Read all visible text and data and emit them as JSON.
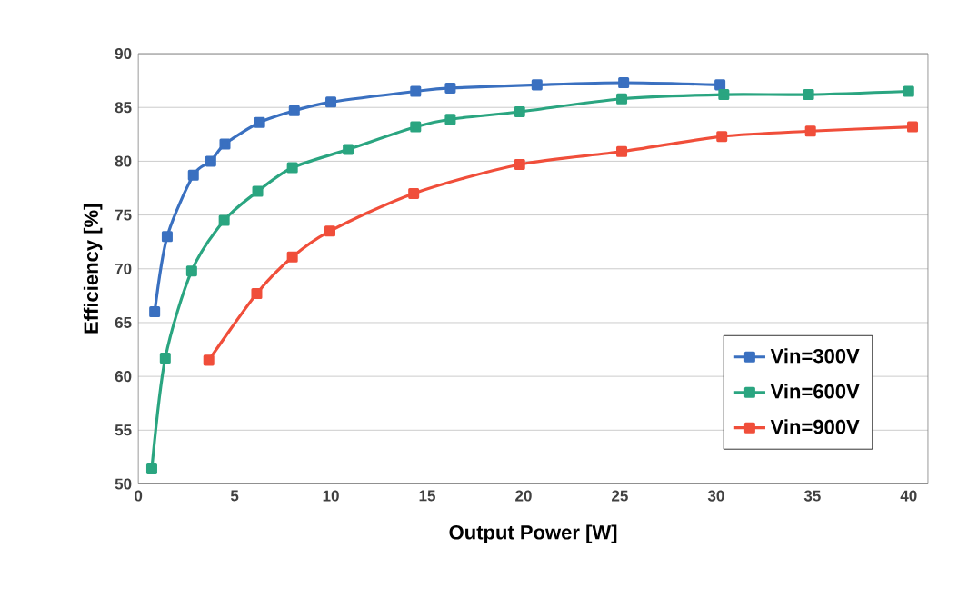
{
  "chart_data": {
    "type": "line",
    "xlabel": "Output Power [W]",
    "ylabel": "Efficiency [%]",
    "xlim": [
      0,
      41
    ],
    "ylim": [
      50,
      90
    ],
    "xticks": [
      0,
      5,
      10,
      15,
      20,
      25,
      30,
      35,
      40
    ],
    "yticks": [
      50,
      55,
      60,
      65,
      70,
      75,
      80,
      85,
      90
    ],
    "grid": "y",
    "legend": "bottom right",
    "marker": "square",
    "line_style": "solid",
    "series": [
      {
        "name": "Vin=300V",
        "color": "#3a70c0",
        "x": [
          0.85,
          1.5,
          2.86,
          3.76,
          4.5,
          6.3,
          8.1,
          10.0,
          14.4,
          16.2,
          20.7,
          25.2,
          30.2
        ],
        "values": [
          66.0,
          73.0,
          78.7,
          80.0,
          81.6,
          83.6,
          84.7,
          85.5,
          86.5,
          86.8,
          87.1,
          87.3,
          87.1
        ]
      },
      {
        "name": "Vin=600V",
        "color": "#2aa580",
        "x": [
          0.7,
          1.4,
          2.77,
          4.46,
          6.2,
          8.0,
          10.9,
          14.4,
          16.2,
          19.8,
          25.1,
          30.4,
          34.8,
          40.0
        ],
        "values": [
          51.4,
          61.7,
          69.8,
          74.5,
          77.2,
          79.4,
          81.1,
          83.2,
          83.9,
          84.6,
          85.8,
          86.2,
          86.2,
          86.5
        ]
      },
      {
        "name": "Vin=900V",
        "color": "#f04e3a",
        "x": [
          3.66,
          6.15,
          8.0,
          9.95,
          14.3,
          19.8,
          25.1,
          30.3,
          34.9,
          40.2
        ],
        "values": [
          61.5,
          67.7,
          71.1,
          73.5,
          77.0,
          79.7,
          80.9,
          82.3,
          82.8,
          83.2
        ]
      }
    ]
  }
}
